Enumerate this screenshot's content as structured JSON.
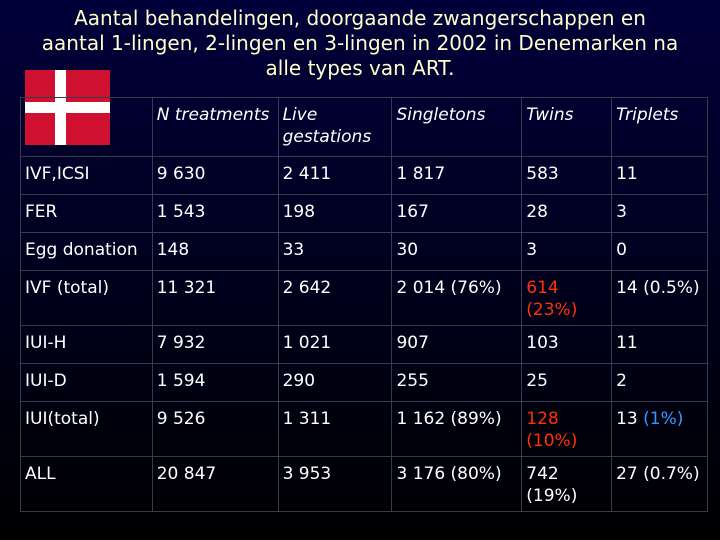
{
  "title": "Aantal behandelingen, doorgaande zwangerschappen en aantal 1-lingen, 2-lingen en 3-lingen in 2002 in Denemarken na alle types van ART.",
  "table": {
    "header": [
      "N treatments",
      "Live gestations",
      "Singletons",
      "Twins",
      "Triplets"
    ],
    "rows": [
      [
        "IVF,ICSI",
        "9 630",
        "2 411",
        "1 817",
        "583",
        "11"
      ],
      [
        "FER",
        "1 543",
        "198",
        "167",
        "28",
        "3"
      ],
      [
        "Egg donation",
        "148",
        "33",
        "30",
        "3",
        "0"
      ],
      [
        "IVF (total)",
        "11 321",
        "2 642",
        "2 014 (76%)",
        [
          {
            "text": "614 (23%)",
            "color": "#ff3300"
          }
        ],
        "14 (0.5%)"
      ],
      [
        "IUI-H",
        "7 932",
        "1 021",
        "907",
        "103",
        "11"
      ],
      [
        "IUI-D",
        "1 594",
        "290",
        "255",
        "25",
        "2"
      ],
      [
        "IUI(total)",
        "9 526",
        "1 311",
        "1 162 (89%)",
        [
          {
            "text": "128 (10%)",
            "color": "#ff3300"
          }
        ],
        [
          {
            "text": "13",
            "color": "#ffffff"
          },
          {
            "text": "(1%)",
            "color": "#3399ff"
          }
        ]
      ],
      [
        "ALL",
        "20 847",
        "3 953",
        "3 176 (80%)",
        "742 (19%)",
        "27 (0.7%)"
      ]
    ]
  }
}
